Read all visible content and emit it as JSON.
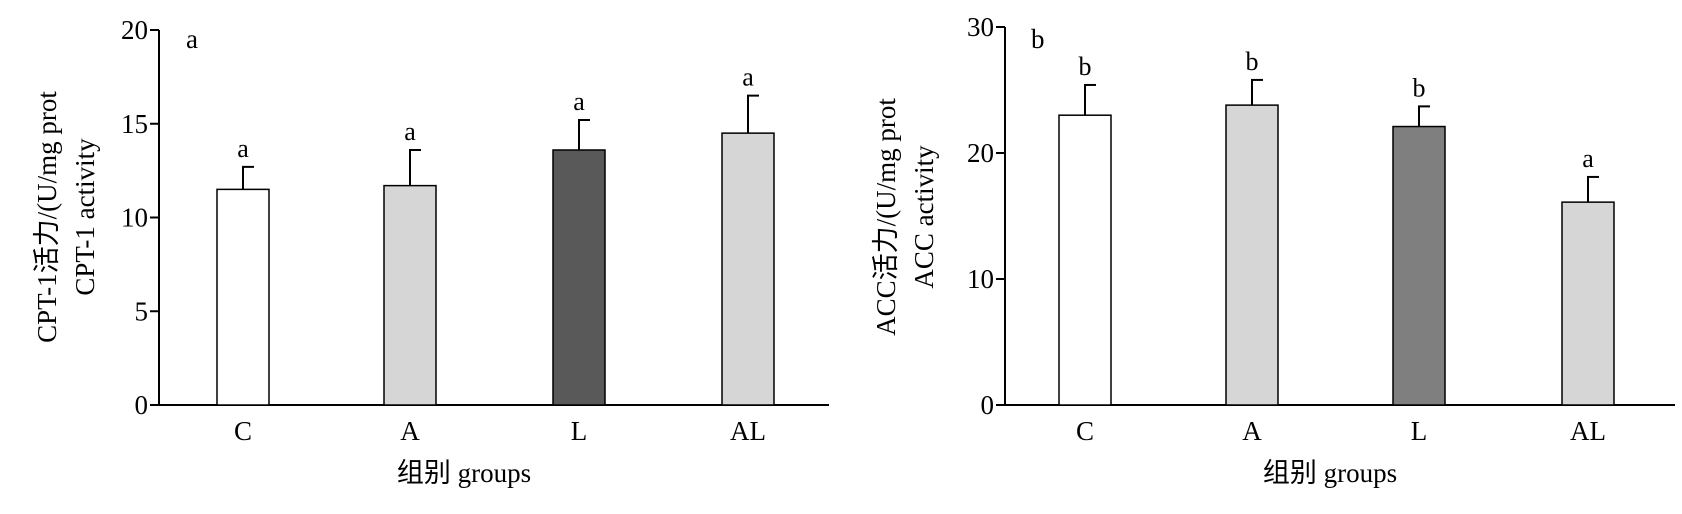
{
  "chart_data": [
    {
      "type": "bar",
      "panel_label": "a",
      "categories": [
        "C",
        "A",
        "L",
        "AL"
      ],
      "values": [
        11.5,
        11.7,
        13.6,
        14.5
      ],
      "errors": [
        1.2,
        1.9,
        1.6,
        2.0
      ],
      "significance": [
        "a",
        "a",
        "a",
        "a"
      ],
      "bar_colors": [
        "#ffffff",
        "#d6d6d6",
        "#595959",
        "#d6d6d6"
      ],
      "ylim": [
        0,
        20
      ],
      "yticks": [
        0,
        5,
        10,
        15,
        20
      ],
      "xlabel": "组别 groups",
      "ylabel_line1": "CPT-1活力/(U/mg prot",
      "ylabel_line2": "CPT-1 activity",
      "grid": false
    },
    {
      "type": "bar",
      "panel_label": "b",
      "categories": [
        "C",
        "A",
        "L",
        "AL"
      ],
      "values": [
        23.0,
        23.8,
        22.1,
        16.1
      ],
      "errors": [
        2.4,
        2.0,
        1.6,
        2.0
      ],
      "significance": [
        "b",
        "b",
        "b",
        "a"
      ],
      "bar_colors": [
        "#ffffff",
        "#d6d6d6",
        "#7f7f7f",
        "#d6d6d6"
      ],
      "ylim": [
        0,
        30
      ],
      "yticks": [
        0,
        10,
        20,
        30
      ],
      "xlabel": "组别 groups",
      "ylabel_line1": "ACC活力/(U/mg prot",
      "ylabel_line2": "ACC activity",
      "grid": false
    }
  ]
}
